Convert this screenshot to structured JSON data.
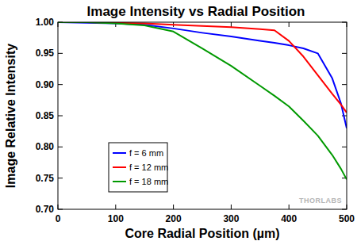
{
  "chart_data": {
    "type": "line",
    "title": "Image Intensity vs Radial Position",
    "x_label": "Core Radial Position (µm)",
    "y_label": "Image Relative Intensity",
    "annotations": [
      "THORLABS"
    ],
    "x": [
      0,
      50,
      100,
      150,
      200,
      250,
      300,
      350,
      375,
      400,
      425,
      450,
      475,
      490,
      500
    ],
    "series": [
      {
        "name": "f = 6 mm",
        "color": "#0000ff",
        "values": [
          1.0,
          0.999,
          0.998,
          0.996,
          0.99,
          0.983,
          0.977,
          0.97,
          0.967,
          0.963,
          0.958,
          0.95,
          0.91,
          0.87,
          0.83
        ]
      },
      {
        "name": "f = 12 mm",
        "color": "#ff0000",
        "values": [
          1.0,
          1.0,
          0.999,
          0.998,
          0.996,
          0.994,
          0.992,
          0.989,
          0.987,
          0.97,
          0.945,
          0.915,
          0.885,
          0.868,
          0.855
        ]
      },
      {
        "name": "f = 18 mm",
        "color": "#009900",
        "values": [
          1.0,
          1.0,
          0.998,
          0.995,
          0.985,
          0.958,
          0.93,
          0.898,
          0.882,
          0.865,
          0.842,
          0.818,
          0.787,
          0.765,
          0.748
        ]
      }
    ],
    "xlim": [
      0,
      500
    ],
    "xticks": [
      0,
      100,
      200,
      300,
      400,
      500
    ],
    "ylim": [
      0.7,
      1.0
    ],
    "yticks": [
      {
        "value": 0.7,
        "label": "0.70"
      },
      0.75,
      {
        "value": 0.8,
        "label": "0.80"
      },
      0.85,
      {
        "value": 0.9,
        "label": "0.90"
      },
      0.95,
      {
        "value": 1.0,
        "label": "1.00"
      }
    ],
    "grid": false,
    "legend": "left"
  }
}
